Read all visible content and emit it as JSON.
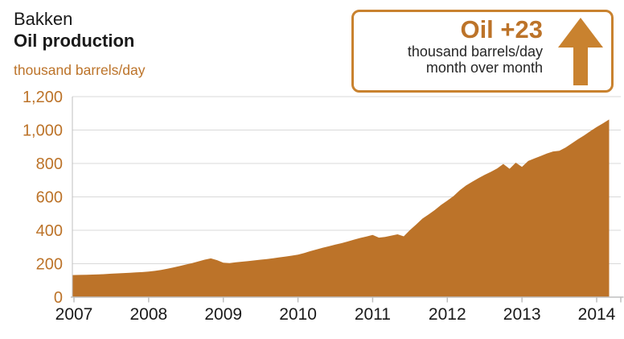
{
  "header": {
    "region": "Bakken",
    "metric": "Oil production",
    "unit_label": "thousand barrels/day"
  },
  "callout": {
    "headline": "Oil +23",
    "line1": "thousand barrels/day",
    "line2": "month over month",
    "arrow_icon": "up-arrow"
  },
  "colors": {
    "accent": "#BC7329",
    "accent_border": "#C9822F",
    "grid": "#D9D9D9",
    "axis": "#BFBFBF",
    "ink": "#1A1A1A"
  },
  "chart_data": {
    "type": "area",
    "title": "Bakken Oil production",
    "ylabel": "thousand barrels/day",
    "xlabel": "",
    "x_start": "2007-01",
    "x_end": "2014-03",
    "x_frequency": "monthly",
    "ylim": [
      0,
      1200
    ],
    "yticks": [
      0,
      200,
      400,
      600,
      800,
      1000,
      1200
    ],
    "xticks": [
      "2007",
      "2008",
      "2009",
      "2010",
      "2011",
      "2012",
      "2013",
      "2014"
    ],
    "grid": "horizontal",
    "legend": "none",
    "series": [
      {
        "name": "Oil production",
        "unit": "thousand barrels/day",
        "color": "#BC7329",
        "monthly_values": [
          132,
          133,
          134,
          135,
          136,
          138,
          140,
          142,
          144,
          146,
          148,
          150,
          153,
          157,
          163,
          170,
          178,
          186,
          195,
          204,
          214,
          224,
          232,
          221,
          206,
          204,
          208,
          212,
          216,
          220,
          224,
          228,
          233,
          238,
          243,
          248,
          254,
          264,
          275,
          286,
          296,
          305,
          314,
          323,
          333,
          344,
          354,
          363,
          372,
          356,
          360,
          368,
          376,
          364,
          402,
          435,
          470,
          495,
          522,
          552,
          578,
          605,
          640,
          668,
          690,
          712,
          732,
          750,
          770,
          797,
          768,
          805,
          780,
          815,
          830,
          845,
          860,
          872,
          876,
          895,
          920,
          945,
          968,
          994,
          1018,
          1040,
          1063
        ]
      }
    ],
    "month_over_month_change": 23
  }
}
